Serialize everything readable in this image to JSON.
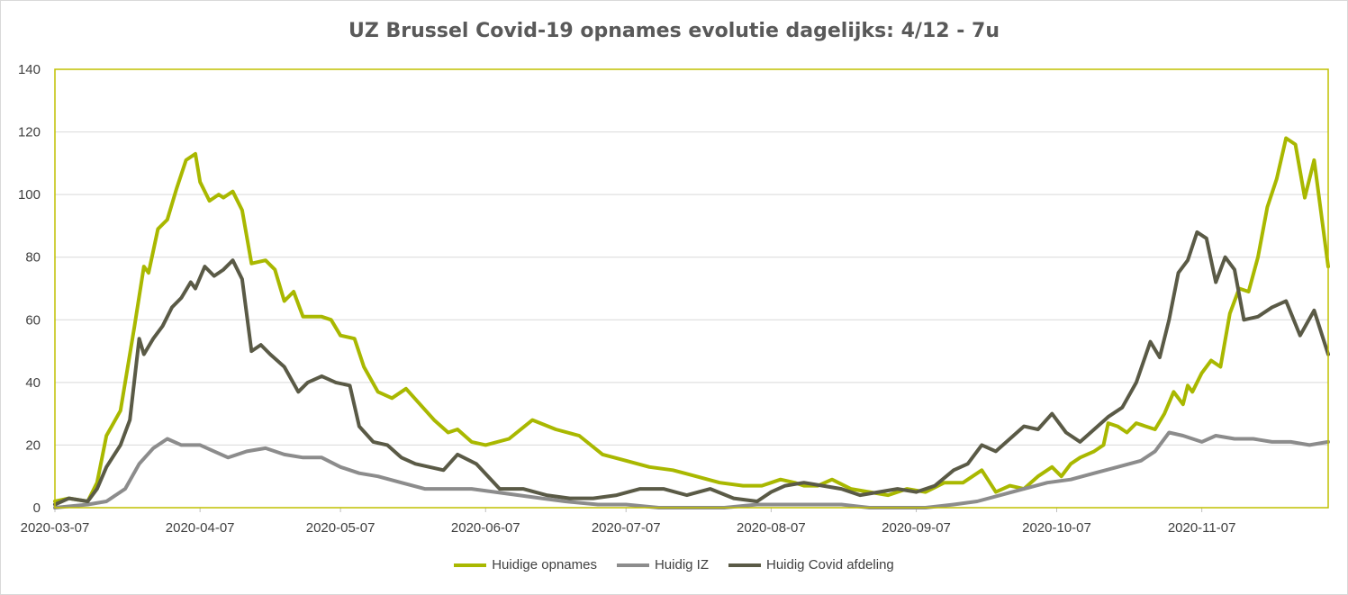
{
  "chart_data": {
    "type": "line",
    "title": "UZ Brussel Covid-19 opnames evolutie dagelijks: 4/12 - 7u",
    "x_start": "2020-03-07",
    "x_end": "2020-12-04",
    "x_tick_labels": [
      "2020-03-07",
      "2020-04-07",
      "2020-05-07",
      "2020-06-07",
      "2020-07-07",
      "2020-08-07",
      "2020-09-07",
      "2020-10-07",
      "2020-11-07"
    ],
    "ylim": [
      0,
      140
    ],
    "y_ticks": [
      0,
      20,
      40,
      60,
      80,
      100,
      120,
      140
    ],
    "grid": "horizontal",
    "legend": "bottom",
    "plot_border_color": "#c0c000",
    "series": [
      {
        "name": "Huidige opnames",
        "color": "#a9b800",
        "x": [
          "2020-03-07",
          "2020-03-10",
          "2020-03-14",
          "2020-03-16",
          "2020-03-18",
          "2020-03-21",
          "2020-03-24",
          "2020-03-26",
          "2020-03-27",
          "2020-03-29",
          "2020-03-31",
          "2020-04-02",
          "2020-04-04",
          "2020-04-06",
          "2020-04-07",
          "2020-04-09",
          "2020-04-11",
          "2020-04-12",
          "2020-04-14",
          "2020-04-16",
          "2020-04-18",
          "2020-04-21",
          "2020-04-23",
          "2020-04-25",
          "2020-04-27",
          "2020-04-29",
          "2020-05-01",
          "2020-05-03",
          "2020-05-05",
          "2020-05-07",
          "2020-05-10",
          "2020-05-12",
          "2020-05-15",
          "2020-05-18",
          "2020-05-21",
          "2020-05-24",
          "2020-05-27",
          "2020-05-30",
          "2020-06-01",
          "2020-06-04",
          "2020-06-07",
          "2020-06-12",
          "2020-06-17",
          "2020-06-22",
          "2020-06-27",
          "2020-07-02",
          "2020-07-07",
          "2020-07-12",
          "2020-07-17",
          "2020-07-22",
          "2020-07-27",
          "2020-08-01",
          "2020-08-05",
          "2020-08-07",
          "2020-08-09",
          "2020-08-12",
          "2020-08-14",
          "2020-08-17",
          "2020-08-20",
          "2020-08-24",
          "2020-08-28",
          "2020-09-01",
          "2020-09-05",
          "2020-09-09",
          "2020-09-13",
          "2020-09-17",
          "2020-09-21",
          "2020-09-24",
          "2020-09-27",
          "2020-09-30",
          "2020-10-03",
          "2020-10-06",
          "2020-10-08",
          "2020-10-10",
          "2020-10-12",
          "2020-10-15",
          "2020-10-17",
          "2020-10-18",
          "2020-10-20",
          "2020-10-22",
          "2020-10-24",
          "2020-10-26",
          "2020-10-28",
          "2020-10-30",
          "2020-11-01",
          "2020-11-03",
          "2020-11-04",
          "2020-11-05",
          "2020-11-07",
          "2020-11-09",
          "2020-11-11",
          "2020-11-13",
          "2020-11-15",
          "2020-11-17",
          "2020-11-19",
          "2020-11-21",
          "2020-11-23",
          "2020-11-25",
          "2020-11-27",
          "2020-11-29",
          "2020-12-01",
          "2020-12-04"
        ],
        "y": [
          2,
          3,
          2,
          8,
          23,
          31,
          58,
          77,
          75,
          89,
          92,
          102,
          111,
          113,
          104,
          98,
          100,
          99,
          101,
          95,
          78,
          79,
          76,
          66,
          69,
          61,
          61,
          61,
          60,
          55,
          54,
          45,
          37,
          35,
          38,
          33,
          28,
          24,
          25,
          21,
          20,
          22,
          28,
          25,
          23,
          17,
          15,
          13,
          12,
          10,
          8,
          7,
          7,
          8,
          9,
          8,
          7,
          7,
          9,
          6,
          5,
          4,
          6,
          5,
          8,
          8,
          12,
          5,
          7,
          6,
          10,
          13,
          10,
          14,
          16,
          18,
          20,
          27,
          26,
          24,
          27,
          26,
          25,
          30,
          37,
          33,
          39,
          37,
          43,
          47,
          45,
          62,
          70,
          69,
          80,
          96,
          105,
          118,
          116,
          99,
          111,
          77
        ]
      },
      {
        "name": "Huidig IZ",
        "color": "#8c8c8c",
        "x": [
          "2020-03-07",
          "2020-03-14",
          "2020-03-18",
          "2020-03-22",
          "2020-03-25",
          "2020-03-28",
          "2020-03-31",
          "2020-04-03",
          "2020-04-07",
          "2020-04-10",
          "2020-04-13",
          "2020-04-17",
          "2020-04-21",
          "2020-04-25",
          "2020-04-29",
          "2020-05-03",
          "2020-05-07",
          "2020-05-11",
          "2020-05-15",
          "2020-05-20",
          "2020-05-25",
          "2020-05-30",
          "2020-06-04",
          "2020-06-09",
          "2020-06-14",
          "2020-06-19",
          "2020-06-24",
          "2020-07-01",
          "2020-07-07",
          "2020-07-14",
          "2020-07-21",
          "2020-07-28",
          "2020-08-04",
          "2020-08-10",
          "2020-08-16",
          "2020-08-22",
          "2020-08-28",
          "2020-09-03",
          "2020-09-09",
          "2020-09-15",
          "2020-09-20",
          "2020-09-25",
          "2020-09-30",
          "2020-10-05",
          "2020-10-10",
          "2020-10-15",
          "2020-10-20",
          "2020-10-25",
          "2020-10-28",
          "2020-10-31",
          "2020-11-03",
          "2020-11-07",
          "2020-11-10",
          "2020-11-14",
          "2020-11-18",
          "2020-11-22",
          "2020-11-26",
          "2020-11-30",
          "2020-12-04"
        ],
        "y": [
          0,
          1,
          2,
          6,
          14,
          19,
          22,
          20,
          20,
          18,
          16,
          18,
          19,
          17,
          16,
          16,
          13,
          11,
          10,
          8,
          6,
          6,
          6,
          5,
          4,
          3,
          2,
          1,
          1,
          0,
          0,
          0,
          1,
          1,
          1,
          1,
          0,
          0,
          0,
          1,
          2,
          4,
          6,
          8,
          9,
          11,
          13,
          15,
          18,
          24,
          23,
          21,
          23,
          22,
          22,
          21,
          21,
          20,
          21
        ]
      },
      {
        "name": "Huidig Covid afdeling",
        "color": "#5a5a46",
        "x": [
          "2020-03-07",
          "2020-03-10",
          "2020-03-14",
          "2020-03-16",
          "2020-03-18",
          "2020-03-21",
          "2020-03-23",
          "2020-03-25",
          "2020-03-26",
          "2020-03-28",
          "2020-03-30",
          "2020-04-01",
          "2020-04-03",
          "2020-04-05",
          "2020-04-06",
          "2020-04-08",
          "2020-04-10",
          "2020-04-12",
          "2020-04-14",
          "2020-04-16",
          "2020-04-18",
          "2020-04-20",
          "2020-04-22",
          "2020-04-25",
          "2020-04-28",
          "2020-04-30",
          "2020-05-03",
          "2020-05-06",
          "2020-05-09",
          "2020-05-11",
          "2020-05-14",
          "2020-05-17",
          "2020-05-20",
          "2020-05-23",
          "2020-05-26",
          "2020-05-29",
          "2020-06-01",
          "2020-06-05",
          "2020-06-10",
          "2020-06-15",
          "2020-06-20",
          "2020-06-25",
          "2020-06-30",
          "2020-07-05",
          "2020-07-10",
          "2020-07-15",
          "2020-07-20",
          "2020-07-25",
          "2020-07-30",
          "2020-08-04",
          "2020-08-07",
          "2020-08-10",
          "2020-08-14",
          "2020-08-18",
          "2020-08-22",
          "2020-08-26",
          "2020-08-30",
          "2020-09-03",
          "2020-09-07",
          "2020-09-11",
          "2020-09-15",
          "2020-09-18",
          "2020-09-21",
          "2020-09-24",
          "2020-09-27",
          "2020-09-30",
          "2020-10-03",
          "2020-10-06",
          "2020-10-09",
          "2020-10-12",
          "2020-10-15",
          "2020-10-18",
          "2020-10-21",
          "2020-10-24",
          "2020-10-27",
          "2020-10-29",
          "2020-10-31",
          "2020-11-02",
          "2020-11-04",
          "2020-11-06",
          "2020-11-08",
          "2020-11-10",
          "2020-11-12",
          "2020-11-14",
          "2020-11-16",
          "2020-11-19",
          "2020-11-22",
          "2020-11-25",
          "2020-11-28",
          "2020-12-01",
          "2020-12-04"
        ],
        "y": [
          1,
          3,
          2,
          6,
          13,
          20,
          28,
          54,
          49,
          54,
          58,
          64,
          67,
          72,
          70,
          77,
          74,
          76,
          79,
          73,
          50,
          52,
          49,
          45,
          37,
          40,
          42,
          40,
          39,
          26,
          21,
          20,
          16,
          14,
          13,
          12,
          17,
          14,
          6,
          6,
          4,
          3,
          3,
          4,
          6,
          6,
          4,
          6,
          3,
          2,
          5,
          7,
          8,
          7,
          6,
          4,
          5,
          6,
          5,
          7,
          12,
          14,
          20,
          18,
          22,
          26,
          25,
          30,
          24,
          21,
          25,
          29,
          32,
          40,
          53,
          48,
          60,
          75,
          79,
          88,
          86,
          72,
          80,
          76,
          60,
          61,
          64,
          66,
          55,
          63,
          49
        ]
      }
    ]
  }
}
